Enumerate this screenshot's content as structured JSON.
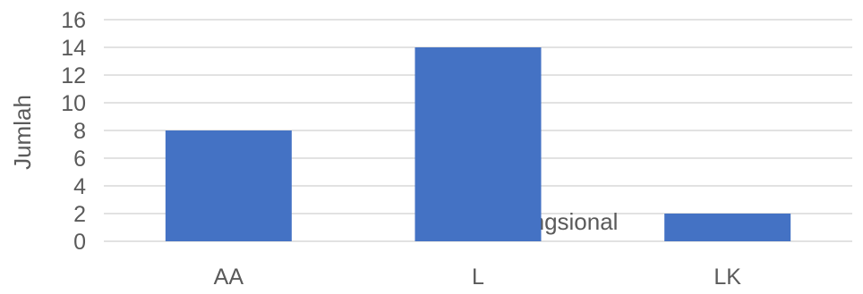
{
  "chart_data": {
    "type": "bar",
    "categories": [
      "AA",
      "L",
      "LK"
    ],
    "values": [
      8,
      14,
      2
    ],
    "ylabel": "Jumlah",
    "xlabel": "Jabatan Fungsional",
    "ylim": [
      0,
      16
    ],
    "yticks": [
      0,
      2,
      4,
      6,
      8,
      10,
      12,
      14,
      16
    ],
    "grid": true,
    "legend": "none",
    "bar_color": "#4472c4",
    "grid_color": "#d9d9d9",
    "text_color": "#5a5a5a"
  }
}
